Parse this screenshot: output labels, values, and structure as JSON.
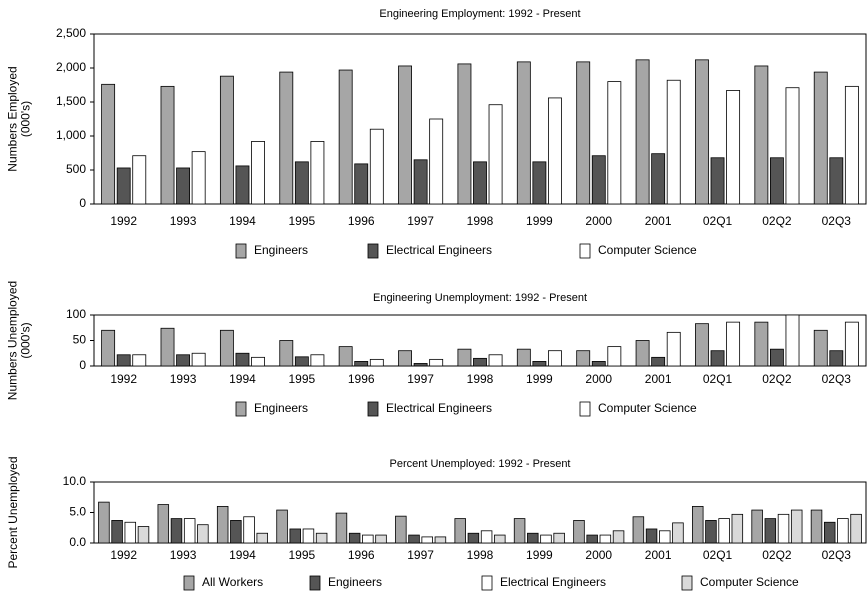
{
  "chart_data": [
    {
      "type": "bar",
      "title": "Engineering Employment: 1992 - Present",
      "ylabel": [
        "Numbers Employed",
        "(000's)"
      ],
      "categories": [
        "1992",
        "1993",
        "1994",
        "1995",
        "1996",
        "1997",
        "1998",
        "1999",
        "2000",
        "2001",
        "02Q1",
        "02Q2",
        "02Q3"
      ],
      "series": [
        {
          "name": "Engineers",
          "color": "#a6a6a6",
          "values": [
            1760,
            1730,
            1880,
            1940,
            1970,
            2030,
            2060,
            2090,
            2090,
            2120,
            2120,
            2030,
            1940
          ]
        },
        {
          "name": "Electrical Engineers",
          "color": "#555555",
          "values": [
            530,
            530,
            560,
            620,
            590,
            650,
            620,
            620,
            710,
            740,
            680,
            680,
            680
          ]
        },
        {
          "name": "Computer Science",
          "color": "#ffffff",
          "values": [
            710,
            770,
            920,
            920,
            1100,
            1250,
            1460,
            1560,
            1800,
            1820,
            1670,
            1710,
            1730
          ]
        }
      ],
      "ylim": [
        0,
        2500
      ],
      "yticks": [
        0,
        500,
        {
          "value": 1000,
          "label": "1,000"
        },
        {
          "value": 1500,
          "label": "1,500"
        },
        {
          "value": 2000,
          "label": "2,000"
        },
        {
          "value": 2500,
          "label": "2,500"
        }
      ]
    },
    {
      "type": "bar",
      "title": "Engineering Unemployment: 1992 - Present",
      "ylabel": [
        "Numbers Unemployed",
        "(000's)"
      ],
      "categories": [
        "1992",
        "1993",
        "1994",
        "1995",
        "1996",
        "1997",
        "1998",
        "1999",
        "2000",
        "2001",
        "02Q1",
        "02Q2",
        "02Q3"
      ],
      "series": [
        {
          "name": "Engineers",
          "color": "#a6a6a6",
          "values": [
            70,
            74,
            70,
            50,
            38,
            30,
            33,
            33,
            30,
            50,
            83,
            86,
            70
          ]
        },
        {
          "name": "Electrical Engineers",
          "color": "#555555",
          "values": [
            22,
            22,
            25,
            18,
            9,
            5,
            15,
            9,
            9,
            17,
            30,
            33,
            30
          ]
        },
        {
          "name": "Computer Science",
          "color": "#ffffff",
          "values": [
            22,
            25,
            17,
            22,
            13,
            13,
            22,
            30,
            38,
            66,
            86,
            100,
            86
          ]
        }
      ],
      "ylim": [
        0,
        100
      ],
      "yticks": [
        0,
        50,
        100
      ]
    },
    {
      "type": "bar",
      "title": "Percent Unemployed: 1992 - Present",
      "ylabel": [
        "Percent  Unemployed"
      ],
      "categories": [
        "1992",
        "1993",
        "1994",
        "1995",
        "1996",
        "1997",
        "1998",
        "1999",
        "2000",
        "2001",
        "02Q1",
        "02Q2",
        "02Q3"
      ],
      "series": [
        {
          "name": "All Workers",
          "color": "#a6a6a6",
          "values": [
            6.7,
            6.3,
            6.0,
            5.4,
            4.9,
            4.4,
            4.0,
            4.0,
            3.7,
            4.3,
            6.0,
            5.4,
            5.4
          ]
        },
        {
          "name": "Engineers",
          "color": "#555555",
          "values": [
            3.7,
            4.0,
            3.7,
            2.3,
            1.6,
            1.3,
            1.6,
            1.6,
            1.3,
            2.3,
            3.7,
            4.0,
            3.4
          ]
        },
        {
          "name": "Electrical Engineers",
          "color": "#ffffff",
          "values": [
            3.4,
            4.0,
            4.3,
            2.3,
            1.3,
            1.0,
            2.0,
            1.3,
            1.3,
            2.0,
            4.0,
            4.7,
            4.0
          ]
        },
        {
          "name": "Computer Science",
          "color": "#d9d9d9",
          "values": [
            2.7,
            3.0,
            1.6,
            1.6,
            1.3,
            1.0,
            1.3,
            1.6,
            2.0,
            3.3,
            4.7,
            5.4,
            4.7
          ]
        }
      ],
      "ylim": [
        0,
        10
      ],
      "yticks": [
        {
          "value": 0,
          "label": "0.0"
        },
        {
          "value": 5,
          "label": "5.0"
        },
        {
          "value": 10,
          "label": "10.0"
        }
      ]
    }
  ]
}
